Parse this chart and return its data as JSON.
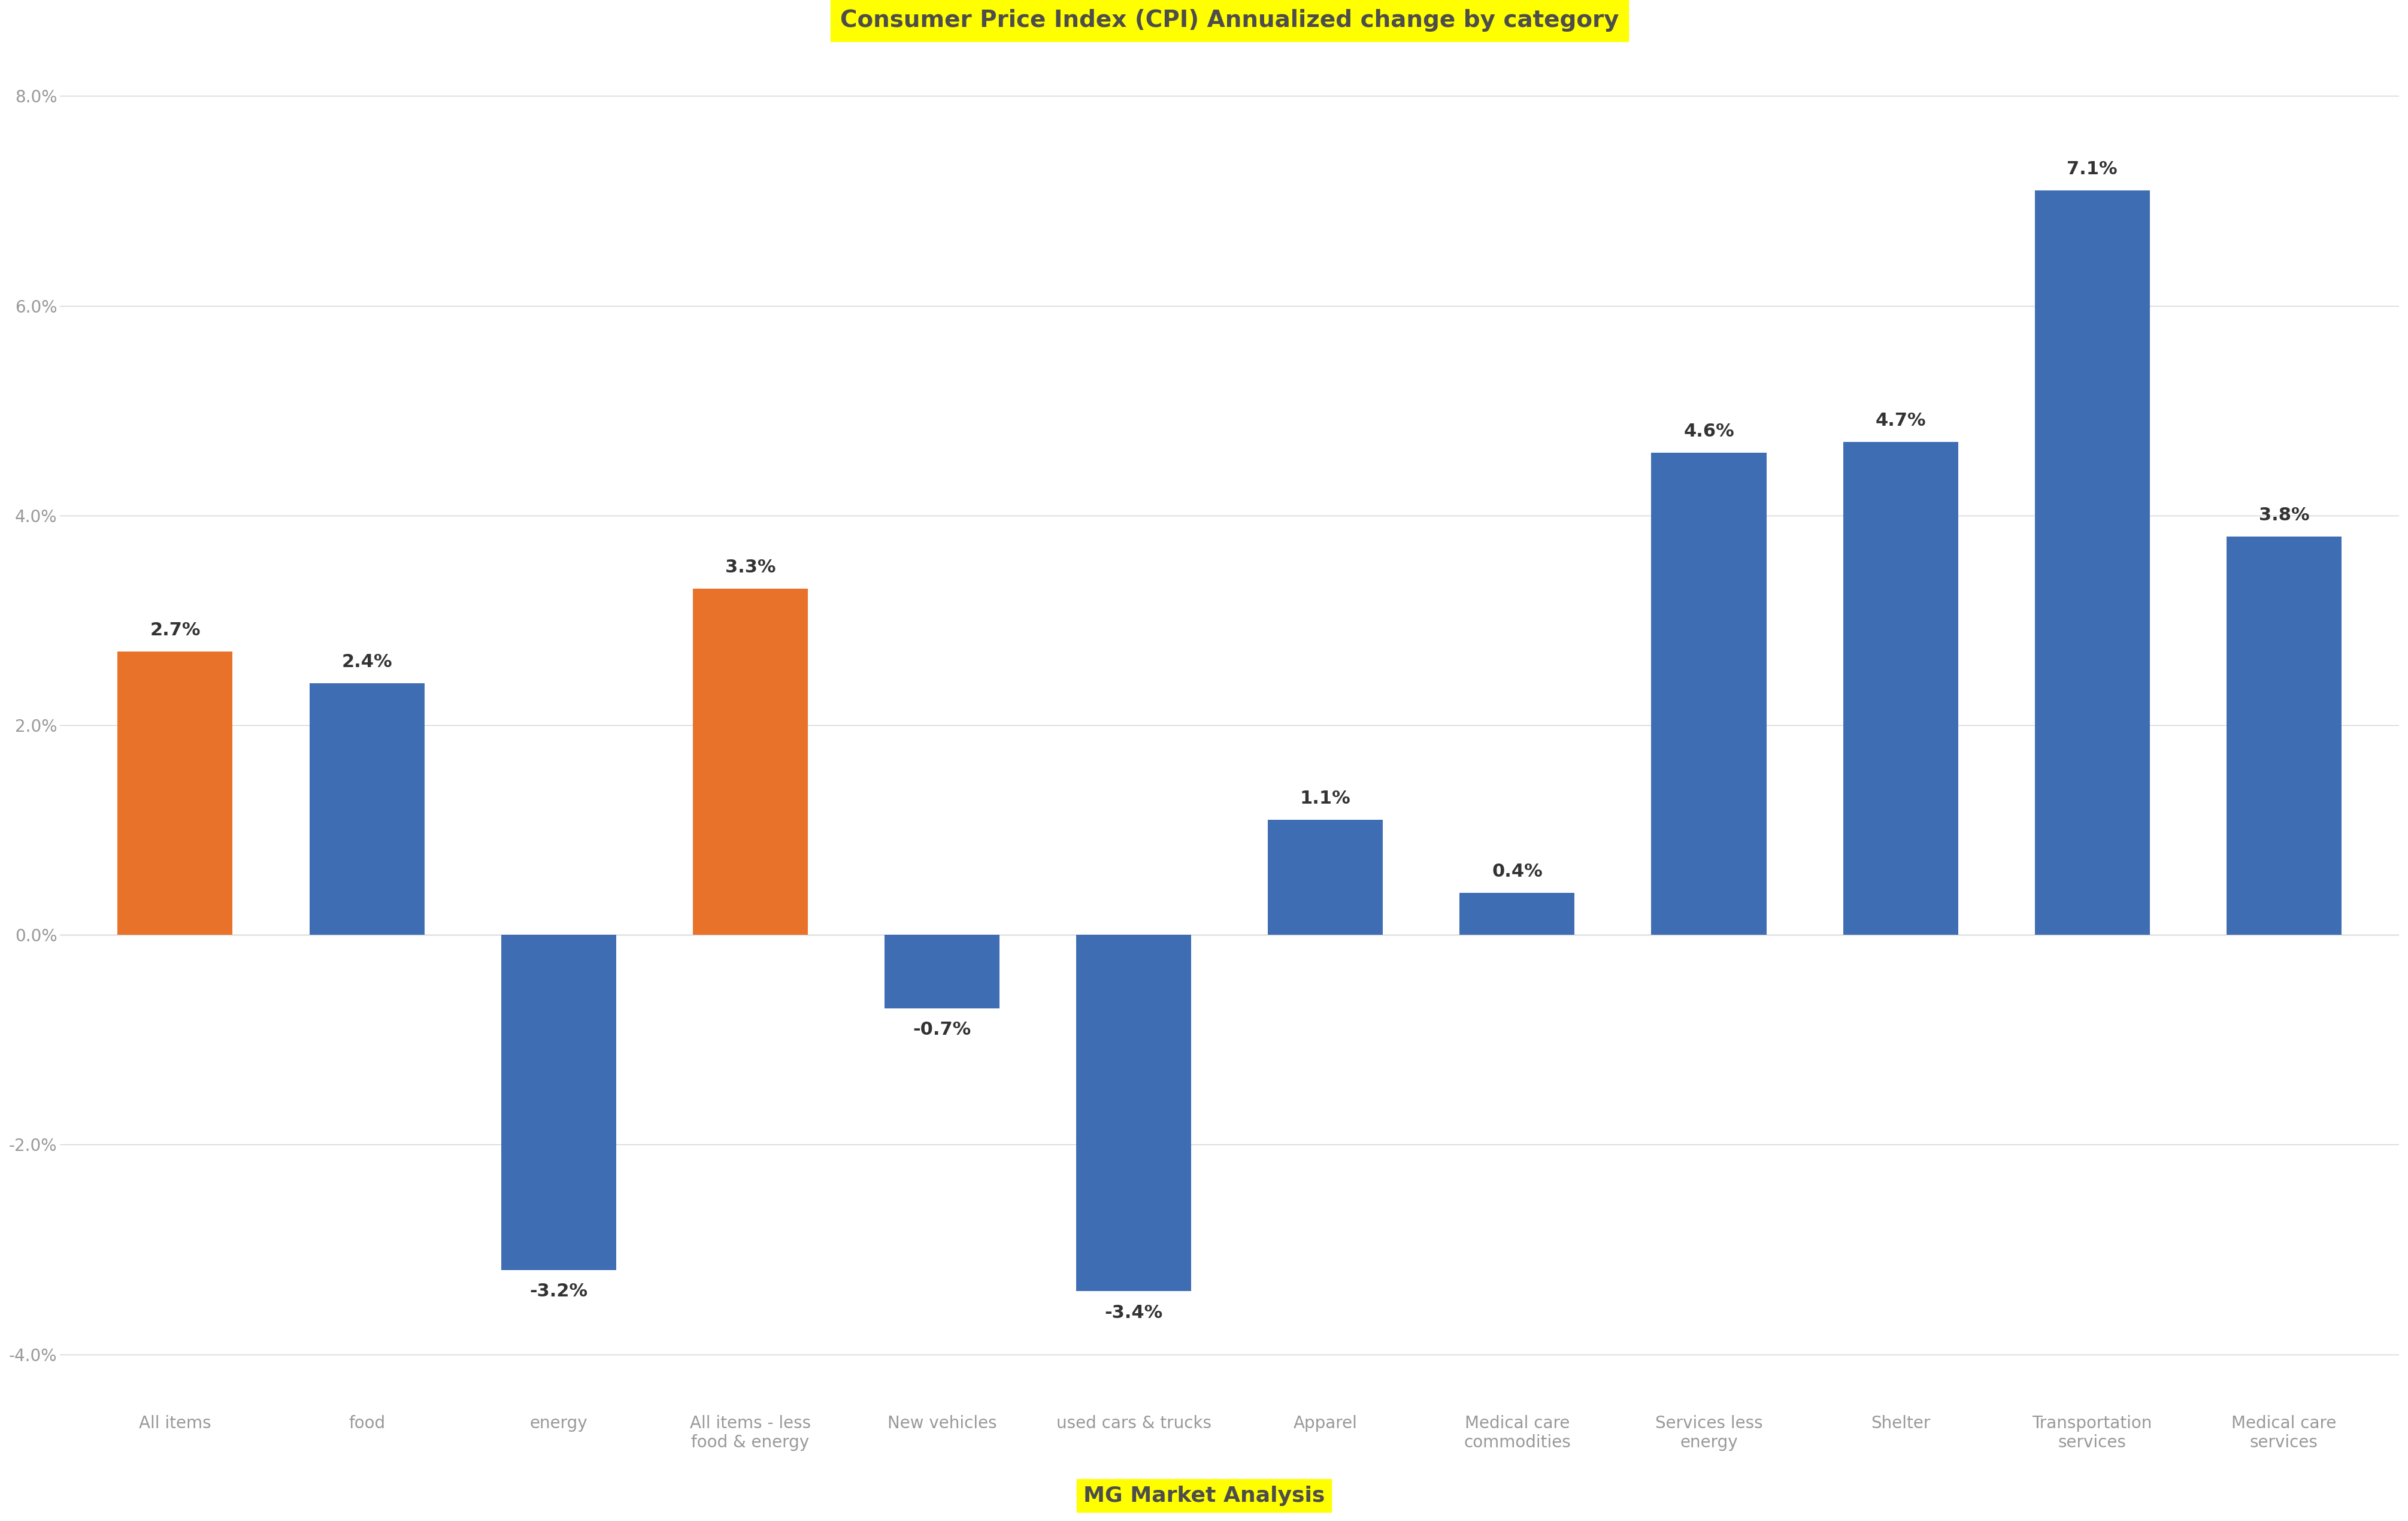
{
  "title": "Consumer Price Index (CPI) Annualized change by category",
  "subtitle": "MG Market Analysis",
  "categories": [
    "All items",
    "food",
    "energy",
    "All items - less\nfood & energy",
    "New vehicles",
    "used cars & trucks",
    "Apparel",
    "Medical care\ncommodities",
    "Services less\nenergy",
    "Shelter",
    "Transportation\nservices",
    "Medical care\nservices"
  ],
  "values": [
    2.7,
    2.4,
    -3.2,
    3.3,
    -0.7,
    -3.4,
    1.1,
    0.4,
    4.6,
    4.7,
    7.1,
    3.8
  ],
  "bar_colors": [
    "#E8722A",
    "#3E6DB4",
    "#3E6DB4",
    "#E8722A",
    "#3E6DB4",
    "#3E6DB4",
    "#3E6DB4",
    "#3E6DB4",
    "#3E6DB4",
    "#3E6DB4",
    "#3E6DB4",
    "#3E6DB4"
  ],
  "ylim": [
    -4.5,
    8.5
  ],
  "yticks": [
    -4.0,
    -2.0,
    0.0,
    2.0,
    4.0,
    6.0,
    8.0
  ],
  "ytick_labels": [
    "-4.0%",
    "-2.0%",
    "0.0%",
    "2.0%",
    "4.0%",
    "6.0%",
    "8.0%"
  ],
  "background_color": "#FFFFFF",
  "title_fontsize": 28,
  "title_bg_color": "#FFFF00",
  "title_text_color": "#4D4D4D",
  "subtitle_fontsize": 26,
  "subtitle_text_color": "#4D4D4D",
  "subtitle_bg_color": "#FFFF00",
  "label_fontsize": 22,
  "tick_fontsize": 20,
  "value_label_fontsize": 22,
  "grid_color": "#D3D3D3",
  "axis_color": "#999999"
}
